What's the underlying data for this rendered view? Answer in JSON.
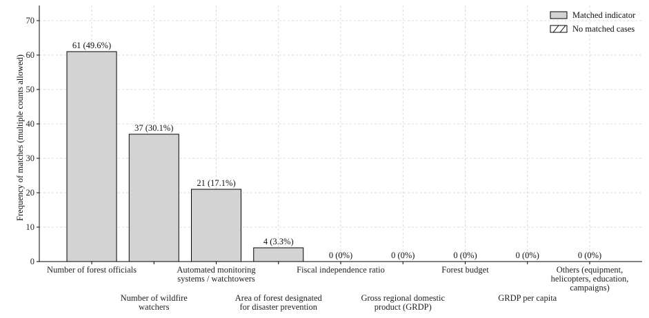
{
  "chart_data": {
    "type": "bar",
    "title": "",
    "xlabel": "",
    "ylabel": "Frequency of matches (multiple counts allowed)",
    "ylim": [
      0,
      77
    ],
    "yticks": [
      0,
      10,
      20,
      30,
      40,
      50,
      60,
      70
    ],
    "grid": true,
    "legend_position": "top-right",
    "legend": [
      "Matched indicator",
      "No matched cases"
    ],
    "categories": [
      [
        "Number of forest officials"
      ],
      [
        "Number of wildfire",
        "watchers"
      ],
      [
        "Automated monitoring",
        "systems / watchtowers"
      ],
      [
        "Area of forest designated",
        "for disaster prevention"
      ],
      [
        "Fiscal independence ratio"
      ],
      [
        "Gross regional domestic",
        "product (GRDP)"
      ],
      [
        "Forest budget"
      ],
      [
        "GRDP per capita"
      ],
      [
        "Others (equipment,",
        "helicopters, education,",
        "campaigns)"
      ]
    ],
    "values": [
      61,
      37,
      21,
      4,
      0,
      0,
      0,
      0,
      0
    ],
    "data_labels": [
      "61 (49.6%)",
      "37 (30.1%)",
      "21 (17.1%)",
      "4 (3.3%)",
      "0 (0%)",
      "0 (0%)",
      "0 (0%)",
      "0 (0%)",
      "0 (0%)"
    ],
    "colors": {
      "bar": "#d3d3d3",
      "edge": "#000000"
    }
  }
}
